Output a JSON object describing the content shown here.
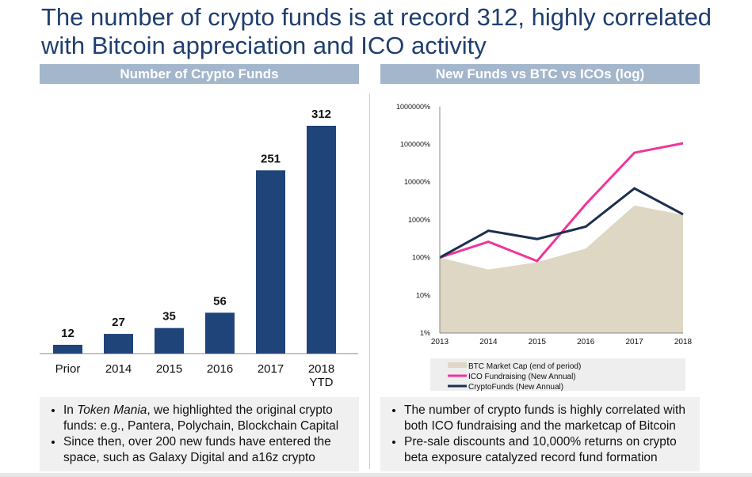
{
  "title": "The number of crypto funds is at record 312, highly correlated with Bitcoin appreciation and ICO activity",
  "left_header": "Number of Crypto Funds",
  "right_header": "New Funds vs BTC vs ICOs (log)",
  "left_bullets": [
    {
      "pre": "In ",
      "em": "Token Mania",
      "post": ", we highlighted the original crypto funds: e.g., Pantera, Polychain, Blockchain Capital"
    },
    {
      "pre": "Since then, over 200 new funds have entered the space, such as Galaxy Digital and a16z crypto",
      "em": "",
      "post": ""
    }
  ],
  "right_bullets": [
    "The number of crypto funds is highly correlated with both ICO fundraising and the marketcap of Bitcoin",
    "Pre-sale discounts and 10,000% returns on crypto beta exposure catalyzed record fund formation"
  ],
  "chart_data": [
    {
      "type": "bar",
      "title": "Number of Crypto Funds",
      "categories": [
        "Prior",
        "2014",
        "2015",
        "2016",
        "2017",
        "2018\nYTD"
      ],
      "values": [
        12,
        27,
        35,
        56,
        251,
        312
      ],
      "colors": {
        "bar": "#1f4479"
      },
      "ylim": [
        0,
        312
      ]
    },
    {
      "type": "line",
      "title": "New Funds vs BTC vs ICOs (log)",
      "x": [
        2013,
        2014,
        2015,
        2016,
        2017,
        2018
      ],
      "yscale": "log",
      "ylim": [
        1,
        1000000
      ],
      "yticks": [
        "1%",
        "10%",
        "100%",
        "1000%",
        "10000%",
        "100000%",
        "1000000%"
      ],
      "legend": "bottom",
      "series": [
        {
          "name": "BTC Market Cap (end of period)",
          "kind": "area",
          "color": "#ddd7c3",
          "values": [
            100,
            48,
            75,
            173,
            2400,
            1350
          ]
        },
        {
          "name": "ICO Fundraising (New Annual)",
          "kind": "line",
          "color": "#f0359a",
          "values": [
            100,
            263,
            81,
            2600,
            60000,
            107000
          ]
        },
        {
          "name": "CryptoFunds (New Annual)",
          "kind": "line",
          "color": "#1b2f50",
          "values": [
            100,
            515,
            310,
            660,
            6800,
            1400
          ]
        }
      ]
    }
  ]
}
